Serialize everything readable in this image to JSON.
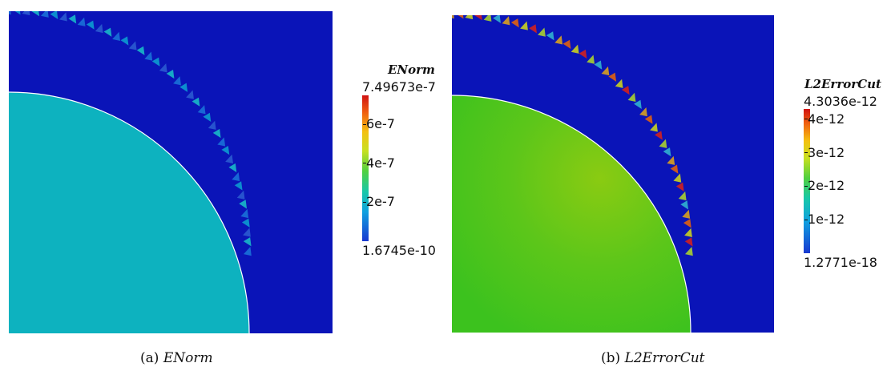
{
  "figure": {
    "panel_a": {
      "colorbar_title": "ENorm",
      "colorbar_max": "7.49673e-7",
      "colorbar_min": "1.6745e-10",
      "ticks": [
        "6e-7",
        "4e-7",
        "2e-7"
      ],
      "tick_values": [
        6e-07,
        4e-07,
        2e-07
      ],
      "range": [
        1.6745e-10,
        7.49673e-07
      ],
      "caption_label": "(a)",
      "caption_name": "ENorm"
    },
    "panel_b": {
      "colorbar_title": "L2ErrorCut",
      "colorbar_max": "4.3036e-12",
      "colorbar_min": "1.2771e-18",
      "ticks": [
        "4e-12",
        "3e-12",
        "2e-12",
        "1e-12"
      ],
      "tick_values": [
        4e-12,
        3e-12,
        2e-12,
        1e-12
      ],
      "range": [
        1.2771e-18,
        4.3036e-12
      ],
      "caption_label": "(b)",
      "caption_name": "L2ErrorCut"
    },
    "colors": {
      "background_field": "#0a14b8",
      "disk_a": "#0db2bf",
      "disk_b": "#3cc21e",
      "disk_b_center": "#8acb12",
      "edge_white": "#ffffff"
    }
  }
}
